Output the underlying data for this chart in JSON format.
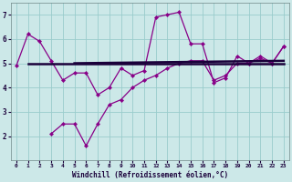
{
  "line1_x": [
    0,
    1,
    2,
    3,
    4,
    5,
    6,
    7,
    8,
    9,
    10,
    11,
    12,
    13,
    14,
    15,
    16,
    17,
    18,
    19,
    20,
    21,
    22,
    23
  ],
  "line1_y": [
    4.9,
    6.2,
    5.9,
    5.1,
    4.3,
    4.6,
    4.6,
    3.7,
    4.0,
    4.8,
    4.5,
    4.7,
    6.9,
    7.0,
    7.1,
    5.8,
    5.8,
    4.2,
    4.4,
    5.3,
    5.0,
    5.3,
    5.0,
    5.7
  ],
  "line2_x": [
    3,
    4,
    5,
    6,
    7,
    8,
    9,
    10,
    11,
    12,
    13,
    14,
    15,
    16,
    17,
    18,
    19,
    20,
    21,
    22,
    23
  ],
  "line2_y": [
    2.1,
    2.5,
    2.5,
    1.6,
    2.5,
    3.3,
    3.5,
    4.0,
    4.3,
    4.5,
    4.8,
    5.0,
    5.1,
    5.1,
    4.3,
    4.5,
    5.0,
    5.0,
    5.2,
    5.0,
    5.7
  ],
  "trend1_x": [
    1,
    23
  ],
  "trend1_y": [
    5.0,
    5.0
  ],
  "trend2_x": [
    5,
    23
  ],
  "trend2_y": [
    5.0,
    5.1
  ],
  "background_color": "#cce8e8",
  "line_color": "#880088",
  "trend_color": "#1a003a",
  "grid_color": "#99cccc",
  "xlabel": "Windchill (Refroidissement éolien,°C)",
  "ylim": [
    1.0,
    7.5
  ],
  "xlim": [
    -0.5,
    23.5
  ],
  "yticks": [
    2,
    3,
    4,
    5,
    6,
    7
  ],
  "xticks": [
    0,
    1,
    2,
    3,
    4,
    5,
    6,
    7,
    8,
    9,
    10,
    11,
    12,
    13,
    14,
    15,
    16,
    17,
    18,
    19,
    20,
    21,
    22,
    23
  ]
}
